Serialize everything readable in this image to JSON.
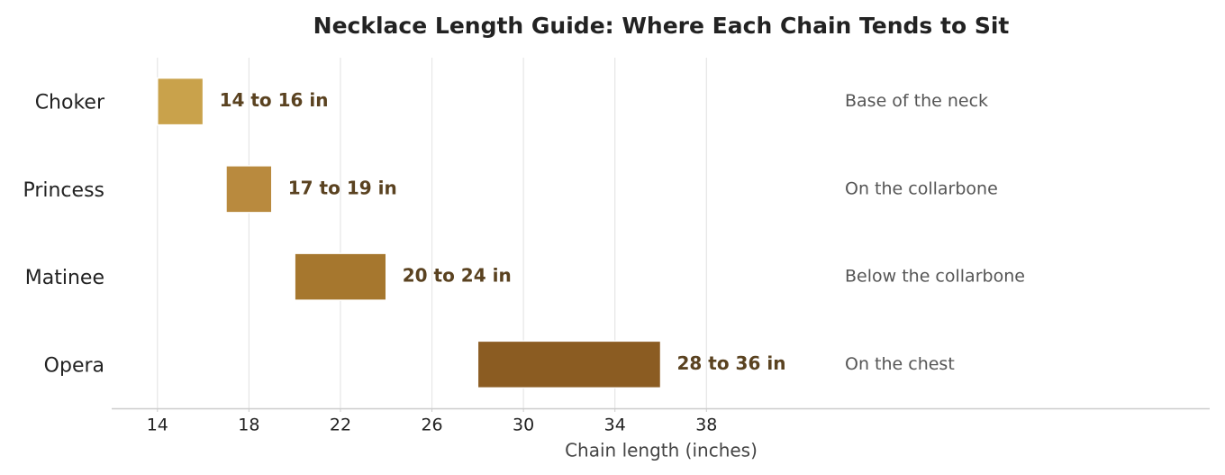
{
  "chart_data": {
    "type": "rangebar",
    "title": "Necklace Length Guide: Where Each Chain Tends to Sit",
    "x_label": "Chain length (inches)",
    "categories": [
      "Choker",
      "Princess",
      "Matinee",
      "Opera"
    ],
    "starts": [
      14,
      17,
      20,
      28
    ],
    "ends": [
      16,
      19,
      24,
      36
    ],
    "value_labels": [
      "14 to 16 in",
      "17 to 19 in",
      "20 to 24 in",
      "28 to 36 in"
    ],
    "notes": [
      "Base of the neck",
      "On the collarbone",
      "Below the collarbone",
      "On the chest"
    ],
    "colors": [
      "#c9a24b",
      "#b98a3e",
      "#a6772e",
      "#8b5c22"
    ],
    "label_color": "#5a4220",
    "xlim": [
      12,
      60
    ],
    "xticks": [
      14,
      18,
      22,
      26,
      30,
      34,
      38
    ],
    "grid": true
  }
}
